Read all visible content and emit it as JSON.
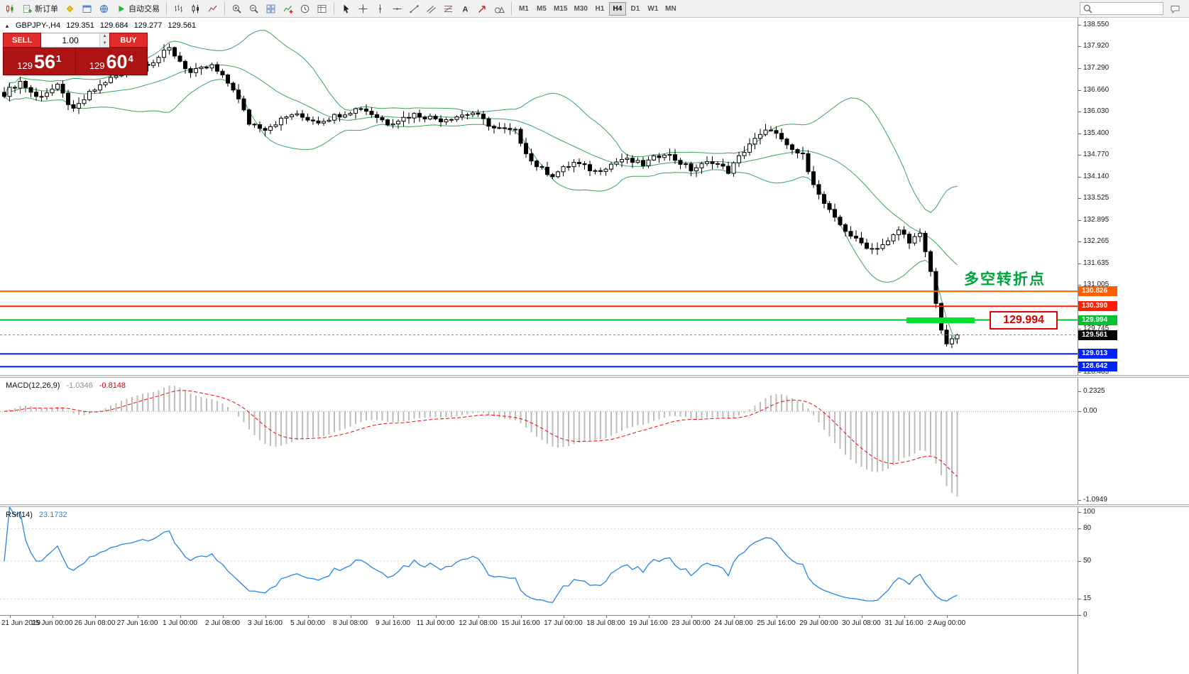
{
  "toolbar": {
    "groups": [
      {
        "name": "main",
        "items": [
          {
            "name": "new-chart",
            "icon": "chart-candles-small"
          },
          {
            "name": "new-order",
            "icon": "new-order-doc",
            "label": "新订单"
          },
          {
            "name": "metaeditor",
            "icon": "metaeditor-diamond"
          },
          {
            "name": "terminal",
            "icon": "terminal-window"
          },
          {
            "name": "community",
            "icon": "community-globe"
          },
          {
            "name": "autotrading",
            "icon": "autotrade-play",
            "label": "自动交易"
          }
        ]
      },
      {
        "name": "chart-types",
        "items": [
          {
            "name": "bar-chart-mode",
            "icon": "ohlc-bars"
          },
          {
            "name": "candle-chart-mode",
            "icon": "candlesticks"
          },
          {
            "name": "line-chart-mode",
            "icon": "line-chart"
          }
        ]
      },
      {
        "name": "view",
        "items": [
          {
            "name": "zoom-in",
            "icon": "zoom-in"
          },
          {
            "name": "zoom-out",
            "icon": "zoom-out"
          },
          {
            "name": "tile-windows",
            "icon": "tile-windows"
          },
          {
            "name": "indicators",
            "icon": "indicator-add"
          },
          {
            "name": "periods",
            "icon": "clock"
          },
          {
            "name": "templates",
            "icon": "template-grid"
          }
        ]
      },
      {
        "name": "objects",
        "items": [
          {
            "name": "cursor",
            "icon": "cursor-arrow"
          },
          {
            "name": "crosshair",
            "icon": "crosshair"
          },
          {
            "name": "vertical-line",
            "icon": "vertical-line"
          },
          {
            "name": "horizontal-line",
            "icon": "horizontal-line"
          },
          {
            "name": "trendline",
            "icon": "trendline"
          },
          {
            "name": "equidistant-channel",
            "icon": "channel"
          },
          {
            "name": "fibonacci",
            "icon": "fibonacci"
          },
          {
            "name": "text",
            "icon": "text-a"
          },
          {
            "name": "arrows",
            "icon": "arrow-object"
          },
          {
            "name": "shapes",
            "icon": "shapes"
          }
        ]
      }
    ],
    "timeframes": [
      "M1",
      "M5",
      "M15",
      "M30",
      "H1",
      "H4",
      "D1",
      "W1",
      "MN"
    ],
    "active_timeframe": "H4"
  },
  "chart": {
    "symbol_line": {
      "symbol": "GBPJPY-,H4",
      "open": "129.351",
      "high": "129.684",
      "low": "129.277",
      "close": "129.561"
    },
    "one_click": {
      "collapse_glyph": "▲",
      "sell_label": "SELL",
      "buy_label": "BUY",
      "amount": "1.00",
      "sell_prefix": "129",
      "sell_main": "56",
      "sell_sup": "1",
      "buy_prefix": "129",
      "buy_main": "60",
      "buy_sup": "4"
    },
    "annotation": "多空转折点",
    "callout": "129.994"
  },
  "chart_data": {
    "type": "candlestick",
    "symbol": "GBPJPY",
    "timeframe": "H4",
    "num_candles": 180,
    "close_anchors": [
      [
        0,
        136.55
      ],
      [
        3,
        136.9
      ],
      [
        6,
        136.45
      ],
      [
        10,
        136.75
      ],
      [
        13,
        136.05
      ],
      [
        16,
        136.55
      ],
      [
        19,
        136.9
      ],
      [
        24,
        137.3
      ],
      [
        28,
        137.5
      ],
      [
        31,
        137.85
      ],
      [
        35,
        137.15
      ],
      [
        39,
        137.35
      ],
      [
        43,
        136.7
      ],
      [
        46,
        135.7
      ],
      [
        49,
        135.55
      ],
      [
        54,
        135.95
      ],
      [
        59,
        135.75
      ],
      [
        64,
        136.0
      ],
      [
        67,
        136.15
      ],
      [
        72,
        135.7
      ],
      [
        77,
        135.95
      ],
      [
        82,
        135.8
      ],
      [
        88,
        136.0
      ],
      [
        92,
        135.55
      ],
      [
        96,
        135.45
      ],
      [
        99,
        134.6
      ],
      [
        101,
        134.35
      ],
      [
        103,
        134.2
      ],
      [
        107,
        134.55
      ],
      [
        111,
        134.3
      ],
      [
        116,
        134.65
      ],
      [
        120,
        134.5
      ],
      [
        124,
        134.85
      ],
      [
        129,
        134.35
      ],
      [
        133,
        134.6
      ],
      [
        136,
        134.3
      ],
      [
        140,
        135.1
      ],
      [
        144,
        135.55
      ],
      [
        147,
        135.0
      ],
      [
        150,
        134.75
      ],
      [
        153,
        133.6
      ],
      [
        156,
        132.9
      ],
      [
        160,
        132.3
      ],
      [
        163,
        132.05
      ],
      [
        166,
        132.25
      ],
      [
        168,
        132.6
      ],
      [
        170,
        132.3
      ],
      [
        172,
        132.45
      ],
      [
        174,
        131.4
      ],
      [
        175,
        130.45
      ],
      [
        176,
        129.7
      ],
      [
        177,
        129.3
      ],
      [
        178,
        129.45
      ],
      [
        179,
        129.561
      ]
    ],
    "price_axis": {
      "min": 128.4,
      "max": 138.75,
      "scale_labels": [
        "138.550",
        "137.920",
        "137.290",
        "136.660",
        "136.030",
        "135.400",
        "134.770",
        "134.140",
        "133.525",
        "132.895",
        "132.265",
        "131.635",
        "131.005"
      ],
      "plain_labels": [
        "129.745",
        "128.485"
      ]
    },
    "levels": [
      {
        "value": 130.826,
        "label": "130.826",
        "color": "#ff5f00"
      },
      {
        "value": 130.39,
        "label": "130.390",
        "color": "#ff1f00"
      },
      {
        "value": 129.994,
        "label": "129.994",
        "color": "#00c22e"
      },
      {
        "value": 129.013,
        "label": "129.013",
        "color": "#0021ff"
      },
      {
        "value": 128.642,
        "label": "128.642",
        "color": "#0021ff"
      }
    ],
    "current_price": {
      "value": 129.561,
      "label": "129.561"
    },
    "indicators": {
      "bollinger": {
        "period": 20,
        "deviation": 2,
        "color": "#3aa55a"
      },
      "macd": {
        "label": "MACD(12,26,9)",
        "value": "-1.0346",
        "signal_value": "-0.8148",
        "axis_labels": [
          "0.2325",
          "0.00",
          "-1.0949"
        ],
        "histogram_color": "#bdbdbd",
        "signal_color": "#ff0000"
      },
      "rsi": {
        "label": "RSI(14)",
        "value": "23.1732",
        "axis_labels": [
          "100",
          "80",
          "50",
          "15",
          "0"
        ],
        "levels": [
          80,
          50,
          15
        ],
        "color": "#2585e4"
      }
    },
    "time_labels": [
      "21 Jun 2019",
      "25 Jun 00:00",
      "26 Jun 08:00",
      "27 Jun 16:00",
      "1 Jul 00:00",
      "2 Jul 08:00",
      "3 Jul 16:00",
      "5 Jul 00:00",
      "8 Jul 08:00",
      "9 Jul 16:00",
      "11 Jul 00:00",
      "12 Jul 08:00",
      "15 Jul 16:00",
      "17 Jul 00:00",
      "18 Jul 08:00",
      "19 Jul 16:00",
      "23 Jul 00:00",
      "24 Jul 08:00",
      "25 Jul 16:00",
      "29 Jul 00:00",
      "30 Jul 08:00",
      "31 Jul 16:00",
      "2 Aug 00:00"
    ]
  }
}
